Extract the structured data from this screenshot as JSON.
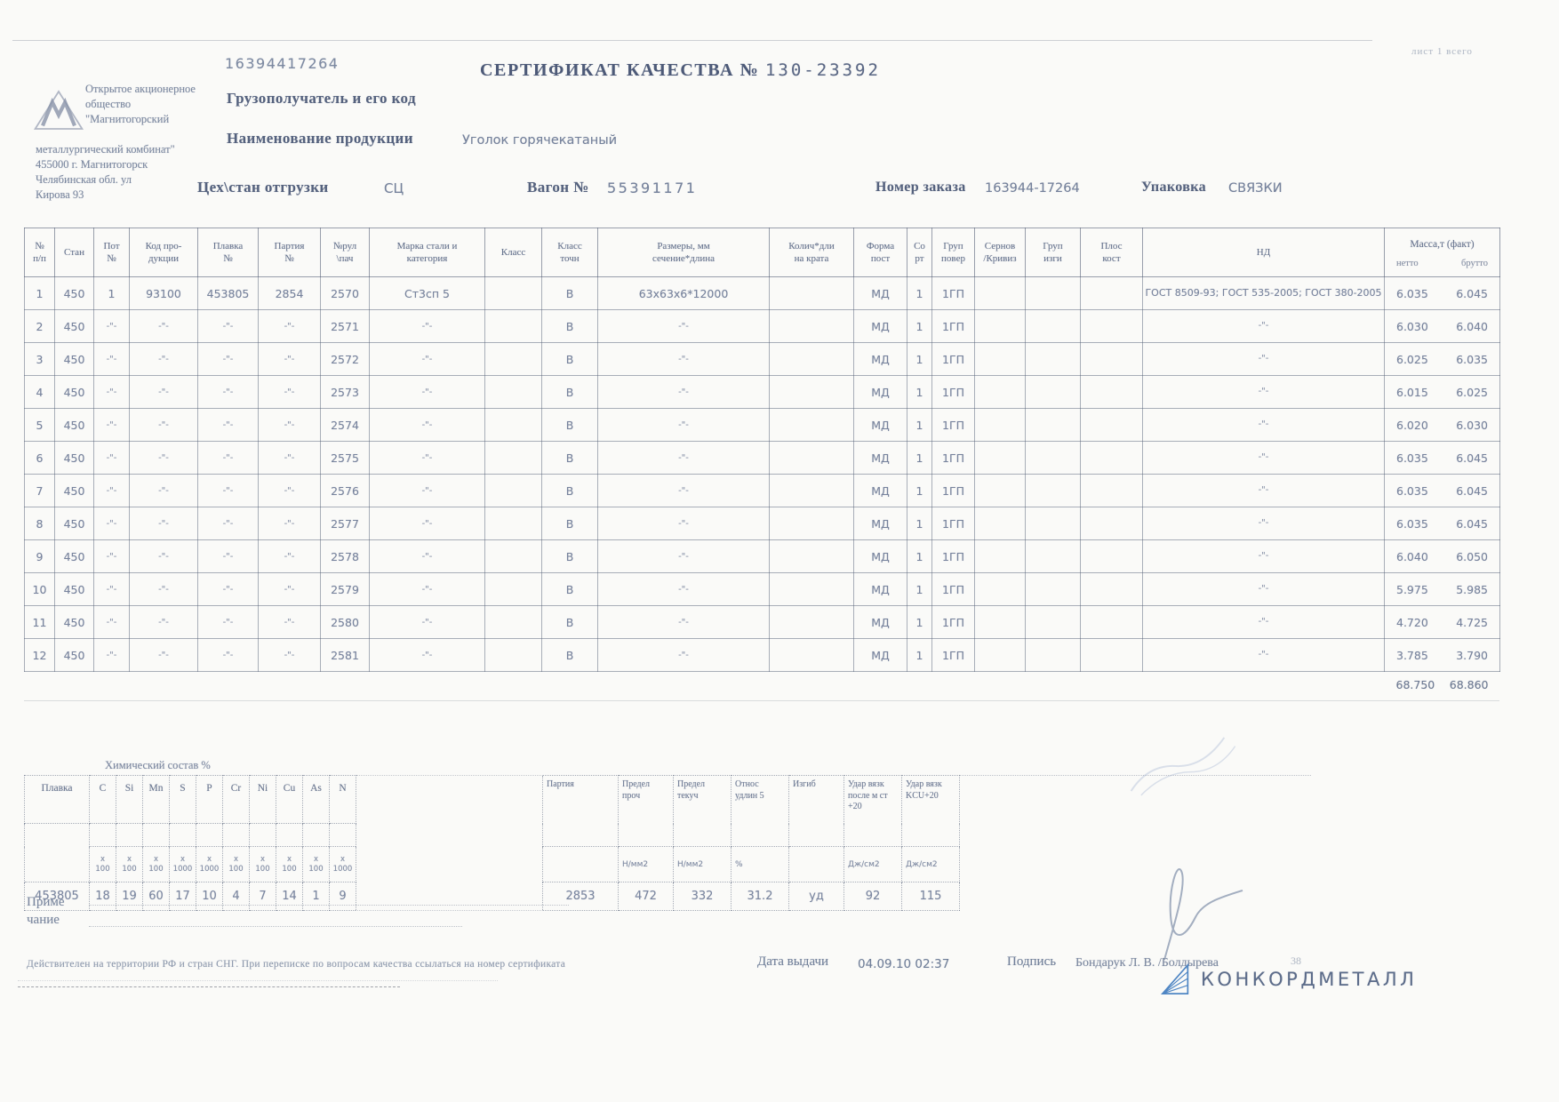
{
  "colors": {
    "ink": "#71809a",
    "ink_dark": "#55627e",
    "brand_text": "#5c6c8a",
    "brand_logo_blue": "#4f86c4"
  },
  "page": {
    "doc_number_top": "16394417264",
    "sheet_info": "лист 1 всего",
    "title": "СЕРТИФИКАТ КАЧЕСТВА №",
    "title_number": "130-23392",
    "consignee_label": "Грузополучатель и его код",
    "product_label": "Наименование продукции",
    "product_value": "Уголок горячекатаный",
    "shop_label": "Цех\\стан отгрузки",
    "shop_value": "СЦ",
    "wagon_label": "Вагон №",
    "wagon_value": "55391171",
    "order_label": "Номер заказа",
    "order_value": "163944-17264",
    "packing_label": "Упаковка",
    "packing_value": "СВЯЗКИ"
  },
  "company": {
    "lines_top": [
      "Открытое акционерное",
      "общество",
      "\"Магнитогорский"
    ],
    "lines_bottom": [
      "металлургический комбинат\"",
      "455000 г. Магнитогорск",
      "Челябинская обл.  ул",
      "Кирова 93"
    ]
  },
  "main_table": {
    "columns": [
      "№\nп/п",
      "Стан",
      "Пот\n№",
      "Код про-\nдукции",
      "Плавка\n№",
      "Партия\n№",
      "№рул\n\\пач",
      "Марка стали и\nкатегория",
      "Класс",
      "Класс\nточн",
      "Размеры, мм\nсечение*длина",
      "Колич*дли\nна крата",
      "Форма\nпост",
      "Со\nрт",
      "Груп\nповер",
      "Сернов\n/Кривиз",
      "Груп\nизги",
      "Плос\nкост",
      "НД"
    ],
    "mass_column": {
      "label": "Масса,т (факт)",
      "sub_netto": "нетто",
      "sub_brutto": "брутто"
    },
    "rows": [
      [
        "1",
        "450",
        "1",
        "93100",
        "453805",
        "2854",
        "2570",
        "Ст3сп 5",
        "",
        "В",
        "63x63x6*12000",
        "",
        "МД",
        "1",
        "1ГП",
        "",
        "",
        "",
        "ГОСТ 8509-93; ГОСТ 535-2005; ГОСТ 380-2005",
        "6.035",
        "6.045"
      ],
      [
        "2",
        "450",
        "-\"-",
        "-\"-",
        "-\"-",
        "-\"-",
        "2571",
        "-\"-",
        "",
        "В",
        "-\"-",
        "",
        "МД",
        "1",
        "1ГП",
        "",
        "",
        "",
        "-\"-",
        "6.030",
        "6.040"
      ],
      [
        "3",
        "450",
        "-\"-",
        "-\"-",
        "-\"-",
        "-\"-",
        "2572",
        "-\"-",
        "",
        "В",
        "-\"-",
        "",
        "МД",
        "1",
        "1ГП",
        "",
        "",
        "",
        "-\"-",
        "6.025",
        "6.035"
      ],
      [
        "4",
        "450",
        "-\"-",
        "-\"-",
        "-\"-",
        "-\"-",
        "2573",
        "-\"-",
        "",
        "В",
        "-\"-",
        "",
        "МД",
        "1",
        "1ГП",
        "",
        "",
        "",
        "-\"-",
        "6.015",
        "6.025"
      ],
      [
        "5",
        "450",
        "-\"-",
        "-\"-",
        "-\"-",
        "-\"-",
        "2574",
        "-\"-",
        "",
        "В",
        "-\"-",
        "",
        "МД",
        "1",
        "1ГП",
        "",
        "",
        "",
        "-\"-",
        "6.020",
        "6.030"
      ],
      [
        "6",
        "450",
        "-\"-",
        "-\"-",
        "-\"-",
        "-\"-",
        "2575",
        "-\"-",
        "",
        "В",
        "-\"-",
        "",
        "МД",
        "1",
        "1ГП",
        "",
        "",
        "",
        "-\"-",
        "6.035",
        "6.045"
      ],
      [
        "7",
        "450",
        "-\"-",
        "-\"-",
        "-\"-",
        "-\"-",
        "2576",
        "-\"-",
        "",
        "В",
        "-\"-",
        "",
        "МД",
        "1",
        "1ГП",
        "",
        "",
        "",
        "-\"-",
        "6.035",
        "6.045"
      ],
      [
        "8",
        "450",
        "-\"-",
        "-\"-",
        "-\"-",
        "-\"-",
        "2577",
        "-\"-",
        "",
        "В",
        "-\"-",
        "",
        "МД",
        "1",
        "1ГП",
        "",
        "",
        "",
        "-\"-",
        "6.035",
        "6.045"
      ],
      [
        "9",
        "450",
        "-\"-",
        "-\"-",
        "-\"-",
        "-\"-",
        "2578",
        "-\"-",
        "",
        "В",
        "-\"-",
        "",
        "МД",
        "1",
        "1ГП",
        "",
        "",
        "",
        "-\"-",
        "6.040",
        "6.050"
      ],
      [
        "10",
        "450",
        "-\"-",
        "-\"-",
        "-\"-",
        "-\"-",
        "2579",
        "-\"-",
        "",
        "В",
        "-\"-",
        "",
        "МД",
        "1",
        "1ГП",
        "",
        "",
        "",
        "-\"-",
        "5.975",
        "5.985"
      ],
      [
        "11",
        "450",
        "-\"-",
        "-\"-",
        "-\"-",
        "-\"-",
        "2580",
        "-\"-",
        "",
        "В",
        "-\"-",
        "",
        "МД",
        "1",
        "1ГП",
        "",
        "",
        "",
        "-\"-",
        "4.720",
        "4.725"
      ],
      [
        "12",
        "450",
        "-\"-",
        "-\"-",
        "-\"-",
        "-\"-",
        "2581",
        "-\"-",
        "",
        "В",
        "-\"-",
        "",
        "МД",
        "1",
        "1ГП",
        "",
        "",
        "",
        "-\"-",
        "3.785",
        "3.790"
      ]
    ],
    "total": {
      "netto": "68.750",
      "brutto": "68.860"
    }
  },
  "chem_table": {
    "caption": "Химический состав %",
    "plavka_label": "Плавка",
    "plavka_value": "453805",
    "elements": [
      "C",
      "Si",
      "Mn",
      "S",
      "P",
      "Cr",
      "Ni",
      "Cu",
      "As",
      "N"
    ],
    "multipliers": [
      "x\n100",
      "x\n100",
      "x\n100",
      "x\n1000",
      "x\n1000",
      "x\n100",
      "x\n100",
      "x\n100",
      "x\n100",
      "x\n1000"
    ],
    "element_values": [
      "18",
      "19",
      "60",
      "17",
      "10",
      "4",
      "7",
      "14",
      "1",
      "9"
    ],
    "mech_columns": [
      "Партия",
      "Предел\nпроч",
      "Предел\nтекуч",
      "Относ\nудлин 5",
      "Изгиб",
      "Удар вязк\nпосле м ст\n+20",
      "Удар вязк\nKCU+20"
    ],
    "mech_units": [
      "",
      "Н/мм2",
      "Н/мм2",
      "%",
      "",
      "Дж/см2",
      "Дж/см2"
    ],
    "mech_values": [
      "2853",
      "472",
      "332",
      "31.2",
      "уд",
      "92",
      "115"
    ]
  },
  "note": {
    "line1": "Приме",
    "line2": "чание"
  },
  "footer": {
    "validity": "Действителен на территории РФ и стран СНГ. При переписке по вопросам качества ссылаться на номер сертификата",
    "date_label": "Дата выдачи",
    "date_value": "04.09.10 02:37",
    "sign_label": "Подпись",
    "sign_value": "Бондарук Л. В. /Болдырева",
    "sign_extra": "38",
    "brand": "КОНКОРДМЕТАЛЛ"
  }
}
